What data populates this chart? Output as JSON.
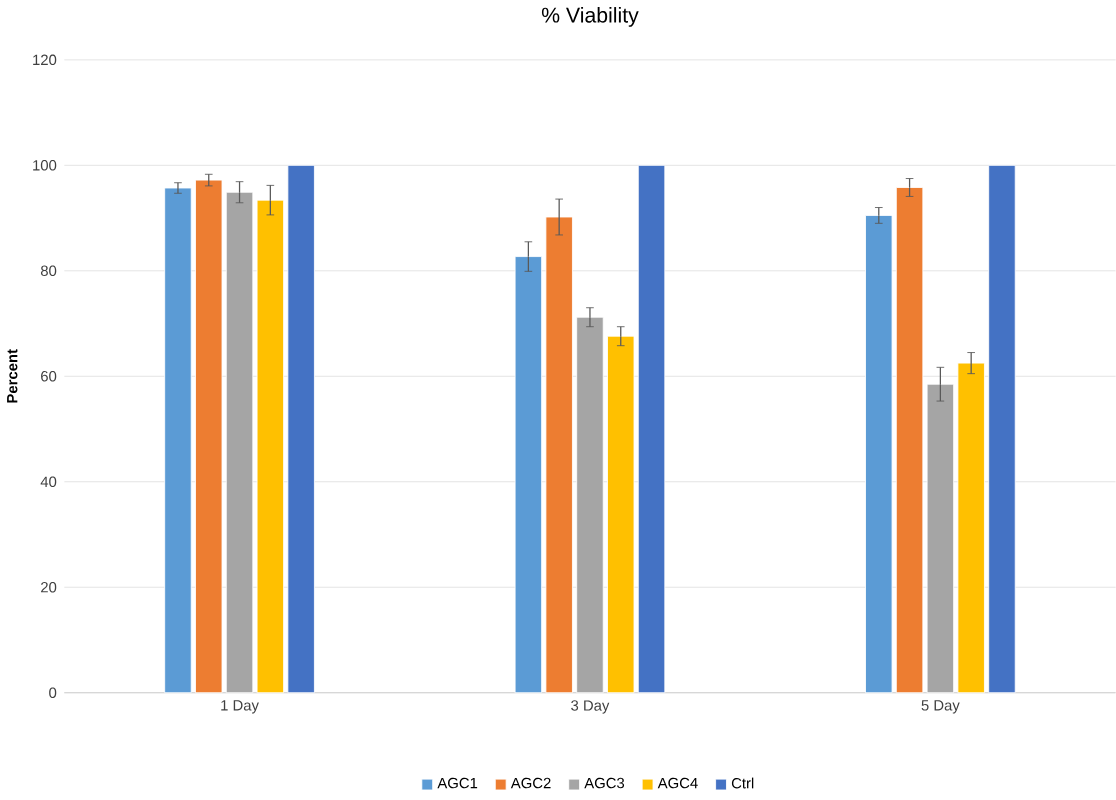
{
  "chart_data": {
    "type": "bar",
    "title": "% Viability",
    "ylabel": "Percent",
    "categories": [
      "1 Day",
      "3 Day",
      "5 Day"
    ],
    "series": [
      {
        "name": "AGC1",
        "color": "#5b9bd5",
        "values": [
          95.7,
          82.7,
          90.5
        ],
        "errors": [
          1,
          2.8,
          1.5
        ]
      },
      {
        "name": "AGC2",
        "color": "#ed7d31",
        "values": [
          97.2,
          90.2,
          95.8
        ],
        "errors": [
          1.1,
          3.4,
          1.7
        ]
      },
      {
        "name": "AGC3",
        "color": "#a5a5a5",
        "values": [
          94.9,
          71.2,
          58.5
        ],
        "errors": [
          2,
          1.8,
          3.2
        ]
      },
      {
        "name": "AGC4",
        "color": "#ffc000",
        "values": [
          93.4,
          67.6,
          62.5
        ],
        "errors": [
          2.8,
          1.8,
          2
        ]
      },
      {
        "name": "Ctrl",
        "color": "#4472c4",
        "values": [
          100,
          100,
          100
        ]
      }
    ],
    "ylim": [
      0,
      120
    ],
    "yticks": [
      0,
      20,
      40,
      60,
      80,
      100,
      120
    ],
    "grid": "y",
    "legend": "bottom"
  }
}
